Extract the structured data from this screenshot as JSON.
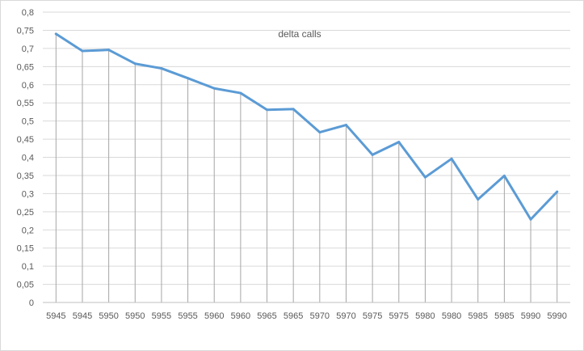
{
  "chart_data": {
    "type": "line",
    "title": "delta calls",
    "xlabel": "",
    "ylabel": "",
    "categories": [
      "5945",
      "5945",
      "5950",
      "5950",
      "5955",
      "5955",
      "5960",
      "5960",
      "5965",
      "5965",
      "5970",
      "5970",
      "5975",
      "5975",
      "5980",
      "5980",
      "5985",
      "5985",
      "5990",
      "5990"
    ],
    "series": [
      {
        "values": [
          0.74,
          0.693,
          0.696,
          0.658,
          0.645,
          0.618,
          0.59,
          0.577,
          0.531,
          0.533,
          0.469,
          0.489,
          0.407,
          0.442,
          0.345,
          0.396,
          0.284,
          0.349,
          0.229,
          0.305
        ],
        "color": "#5b9bd5"
      }
    ],
    "ylim": [
      0,
      0.8
    ],
    "ytick_labels": [
      "0",
      "0,05",
      "0,1",
      "0,15",
      "0,2",
      "0,25",
      "0,3",
      "0,35",
      "0,4",
      "0,45",
      "0,5",
      "0,55",
      "0,6",
      "0,65",
      "0,7",
      "0,75",
      "0,8"
    ],
    "grid": {
      "horizontal": true,
      "vertical_drop_lines": true
    },
    "colors": {
      "gridline": "#d9d9d9",
      "drop_line": "#a6a6a6",
      "axis": "#bfbfbf"
    }
  }
}
